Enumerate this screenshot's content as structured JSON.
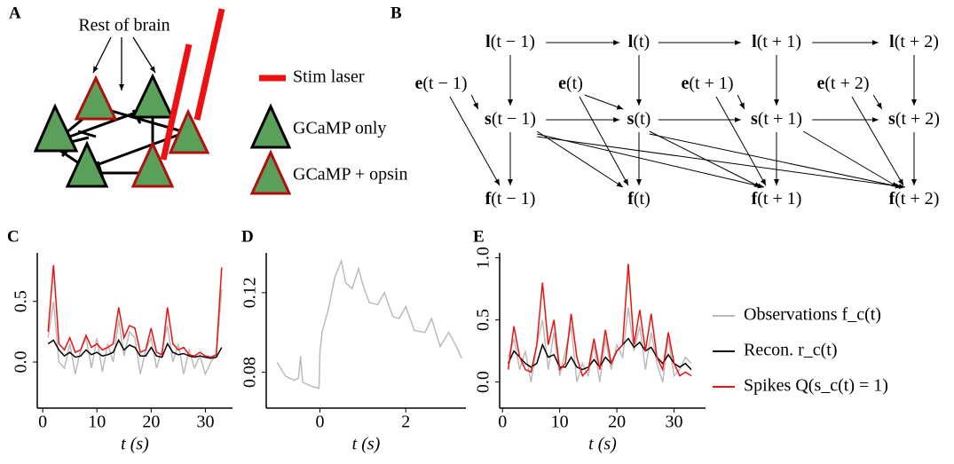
{
  "panels": {
    "a": "A",
    "b": "B",
    "c": "C",
    "d": "D",
    "e": "E"
  },
  "diagram_a": {
    "input_label": "Rest of brain",
    "legend": [
      "Stim laser",
      "GCaMP only",
      "GCaMP + opsin"
    ]
  },
  "diagram_b": {
    "nodes": [
      {
        "symbol": "l",
        "arg": "(t − 1)"
      },
      {
        "symbol": "l",
        "arg": "(t)"
      },
      {
        "symbol": "l",
        "arg": "(t + 1)"
      },
      {
        "symbol": "l",
        "arg": "(t + 2)"
      },
      {
        "symbol": "e",
        "arg": "(t − 1)"
      },
      {
        "symbol": "e",
        "arg": "(t)"
      },
      {
        "symbol": "e",
        "arg": "(t + 1)"
      },
      {
        "symbol": "e",
        "arg": "(t + 2)"
      },
      {
        "symbol": "s",
        "arg": "(t − 1)"
      },
      {
        "symbol": "s",
        "arg": "(t)"
      },
      {
        "symbol": "s",
        "arg": "(t + 1)"
      },
      {
        "symbol": "s",
        "arg": "(t + 2)"
      },
      {
        "symbol": "f",
        "arg": "(t − 1)"
      },
      {
        "symbol": "f",
        "arg": "(t)"
      },
      {
        "symbol": "f",
        "arg": "(t + 1)"
      },
      {
        "symbol": "f",
        "arg": "(t + 2)"
      }
    ]
  },
  "chart_data": [
    {
      "type": "line",
      "xlabel": "t (s)",
      "xlim": [
        -1,
        35
      ],
      "ylim": [
        -0.38,
        0.9
      ],
      "xticks": [
        0,
        10,
        20,
        30
      ],
      "yticks": [
        {
          "value": 0,
          "label": "0.0"
        },
        {
          "value": 0.5,
          "label": "0.5"
        }
      ],
      "x": [
        1,
        2,
        3,
        4,
        5,
        6,
        7,
        8,
        9,
        10,
        11,
        12,
        13,
        14,
        15,
        16,
        17,
        18,
        19,
        20,
        21,
        22,
        23,
        24,
        25,
        26,
        27,
        28,
        29,
        30,
        31,
        32,
        33
      ],
      "series": [
        {
          "color": "#bbbbbb",
          "values": [
            0.2,
            0.5,
            0.0,
            -0.05,
            0.15,
            -0.1,
            0.1,
            0.2,
            -0.05,
            0.2,
            -0.08,
            0.15,
            0.0,
            0.35,
            0.05,
            0.25,
            0.2,
            -0.1,
            0.1,
            0.2,
            -0.05,
            0.1,
            0.3,
            0.0,
            0.15,
            -0.1,
            0.1,
            -0.05,
            0.05,
            -0.1,
            0.0,
            0.05,
            0.6
          ]
        },
        {
          "color": "#000000",
          "values": [
            0.15,
            0.18,
            0.1,
            0.05,
            0.08,
            0.04,
            0.05,
            0.1,
            0.06,
            0.08,
            0.05,
            0.06,
            0.08,
            0.18,
            0.1,
            0.14,
            0.12,
            0.05,
            0.05,
            0.12,
            0.05,
            0.04,
            0.15,
            0.08,
            0.06,
            0.07,
            0.05,
            0.04,
            0.05,
            0.04,
            0.03,
            0.04,
            0.12
          ]
        },
        {
          "color": "#ee1111",
          "values": [
            0.25,
            0.8,
            0.15,
            0.1,
            0.2,
            0.08,
            0.1,
            0.22,
            0.12,
            0.15,
            0.1,
            0.12,
            0.15,
            0.45,
            0.2,
            0.3,
            0.28,
            0.08,
            0.1,
            0.28,
            0.08,
            0.06,
            0.45,
            0.15,
            0.1,
            0.12,
            0.06,
            0.05,
            0.08,
            0.05,
            0.04,
            0.06,
            0.78
          ]
        }
      ]
    },
    {
      "type": "line",
      "xlabel": "t (s)",
      "xlim": [
        -1.25,
        3.4
      ],
      "ylim": [
        0.062,
        0.14
      ],
      "xticks": [
        0,
        2
      ],
      "yticks": [
        0.08,
        0.12
      ],
      "x": [
        -1,
        -0.8,
        -0.6,
        -0.5,
        -0.45,
        -0.4,
        -0.2,
        -0.02,
        0,
        0.05,
        0.2,
        0.35,
        0.5,
        0.6,
        0.75,
        0.9,
        1.0,
        1.15,
        1.35,
        1.5,
        1.7,
        1.85,
        2.0,
        2.2,
        2.45,
        2.6,
        2.8,
        3.0,
        3.2,
        3.3
      ],
      "series": [
        {
          "color": "#bbbbbb",
          "values": [
            0.085,
            0.078,
            0.076,
            0.077,
            0.088,
            0.075,
            0.073,
            0.072,
            0.09,
            0.1,
            0.112,
            0.128,
            0.136,
            0.125,
            0.122,
            0.132,
            0.124,
            0.115,
            0.114,
            0.12,
            0.108,
            0.107,
            0.113,
            0.101,
            0.1,
            0.107,
            0.093,
            0.1,
            0.092,
            0.087
          ]
        }
      ]
    },
    {
      "type": "line",
      "xlabel": "t (s)",
      "xlim": [
        -0.5,
        35.5
      ],
      "ylim": [
        -0.21,
        1.04
      ],
      "xticks": [
        0,
        10,
        20,
        30
      ],
      "yticks": [
        {
          "value": 0,
          "label": "0.0"
        },
        {
          "value": 0.5,
          "label": "0.5"
        },
        {
          "value": 1,
          "label": "1.0"
        }
      ],
      "x": [
        1,
        2,
        3,
        4,
        5,
        6,
        7,
        8,
        9,
        10,
        11,
        12,
        13,
        14,
        15,
        16,
        17,
        18,
        19,
        20,
        21,
        22,
        23,
        24,
        25,
        26,
        27,
        28,
        29,
        30,
        31,
        32,
        33
      ],
      "series": [
        {
          "name": "Observations f_c(t)",
          "color": "#bbbbbb",
          "values": [
            0.2,
            0.35,
            0.1,
            0.25,
            0.0,
            0.3,
            0.5,
            0.1,
            0.4,
            0.05,
            0.25,
            0.45,
            0.0,
            0.15,
            0.05,
            0.3,
            0.0,
            0.35,
            0.1,
            0.3,
            0.2,
            0.6,
            0.25,
            0.45,
            0.1,
            0.4,
            0.15,
            0.0,
            0.35,
            0.05,
            0.1,
            0.2,
            0.15
          ]
        },
        {
          "name": "Recon. r_c(t)",
          "color": "#000000",
          "values": [
            0.15,
            0.25,
            0.2,
            0.15,
            0.12,
            0.15,
            0.3,
            0.2,
            0.22,
            0.12,
            0.12,
            0.2,
            0.12,
            0.1,
            0.12,
            0.18,
            0.12,
            0.2,
            0.15,
            0.25,
            0.3,
            0.35,
            0.28,
            0.32,
            0.25,
            0.28,
            0.2,
            0.15,
            0.22,
            0.15,
            0.12,
            0.15,
            0.1
          ]
        },
        {
          "name": "Spikes Q(s_c(t) = 1)",
          "color": "#ee1111",
          "values": [
            0.1,
            0.45,
            0.2,
            0.1,
            0.08,
            0.3,
            0.8,
            0.3,
            0.5,
            0.1,
            0.15,
            0.55,
            0.2,
            0.05,
            0.1,
            0.35,
            0.1,
            0.42,
            0.15,
            0.25,
            0.3,
            0.95,
            0.3,
            0.58,
            0.25,
            0.55,
            0.2,
            0.1,
            0.4,
            0.15,
            0.05,
            0.08,
            0.05
          ]
        }
      ]
    }
  ]
}
